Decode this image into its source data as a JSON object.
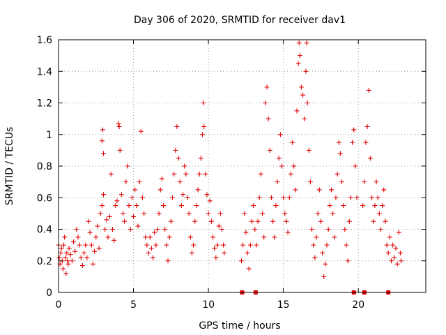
{
  "chart_data": {
    "type": "scatter",
    "title": "Day 306 of 2020, SRMTID for receiver dav1",
    "xlabel": "GPS time / hours",
    "ylabel": "SRMTID / TECUs",
    "xlim": [
      0,
      24.5
    ],
    "ylim": [
      0,
      1.6
    ],
    "xticks": [
      0,
      5,
      10,
      15,
      20
    ],
    "xtick_labels": [
      "0",
      "5",
      "10",
      "15",
      "20"
    ],
    "yticks": [
      0,
      0.2,
      0.4,
      0.6,
      0.8,
      1.0,
      1.2,
      1.4,
      1.6
    ],
    "ytick_labels": [
      "0",
      "0.2",
      "0.4",
      "0.6",
      "0.8",
      "1",
      "1.2",
      "1.4",
      "1.6"
    ],
    "grid": true,
    "marker": "plus",
    "color": "#e00000",
    "series": [
      {
        "name": "SRMTID",
        "points": [
          [
            0.0,
            0.3
          ],
          [
            0.05,
            0.22
          ],
          [
            0.1,
            0.18
          ],
          [
            0.15,
            0.25
          ],
          [
            0.2,
            0.28
          ],
          [
            0.25,
            0.2
          ],
          [
            0.3,
            0.15
          ],
          [
            0.35,
            0.3
          ],
          [
            0.4,
            0.35
          ],
          [
            0.45,
            0.22
          ],
          [
            0.5,
            0.12
          ],
          [
            0.55,
            0.25
          ],
          [
            0.6,
            0.2
          ],
          [
            0.65,
            0.18
          ],
          [
            0.7,
            0.28
          ],
          [
            0.8,
            0.24
          ],
          [
            0.9,
            0.2
          ],
          [
            1.0,
            0.32
          ],
          [
            1.1,
            0.26
          ],
          [
            1.2,
            0.4
          ],
          [
            1.3,
            0.35
          ],
          [
            1.4,
            0.3
          ],
          [
            1.5,
            0.22
          ],
          [
            1.6,
            0.17
          ],
          [
            1.7,
            0.25
          ],
          [
            1.8,
            0.3
          ],
          [
            1.9,
            0.22
          ],
          [
            2.0,
            0.45
          ],
          [
            2.1,
            0.38
          ],
          [
            2.2,
            0.3
          ],
          [
            2.3,
            0.18
          ],
          [
            2.4,
            0.26
          ],
          [
            2.5,
            0.35
          ],
          [
            2.6,
            0.42
          ],
          [
            2.7,
            0.28
          ],
          [
            2.8,
            0.5
          ],
          [
            2.9,
            0.55
          ],
          [
            3.0,
            0.62
          ],
          [
            2.9,
            0.96
          ],
          [
            2.95,
            1.03
          ],
          [
            3.0,
            0.88
          ],
          [
            3.1,
            0.4
          ],
          [
            3.2,
            0.46
          ],
          [
            3.3,
            0.35
          ],
          [
            3.4,
            0.48
          ],
          [
            3.5,
            0.75
          ],
          [
            3.6,
            0.4
          ],
          [
            3.7,
            0.33
          ],
          [
            3.8,
            0.55
          ],
          [
            3.9,
            0.58
          ],
          [
            4.0,
            1.07
          ],
          [
            4.05,
            1.05
          ],
          [
            4.1,
            0.9
          ],
          [
            4.2,
            0.62
          ],
          [
            4.3,
            0.5
          ],
          [
            4.4,
            0.45
          ],
          [
            4.5,
            0.7
          ],
          [
            4.6,
            0.8
          ],
          [
            4.7,
            0.55
          ],
          [
            4.8,
            0.4
          ],
          [
            4.9,
            0.6
          ],
          [
            5.0,
            0.48
          ],
          [
            5.1,
            0.65
          ],
          [
            5.2,
            0.55
          ],
          [
            5.3,
            0.42
          ],
          [
            5.4,
            0.7
          ],
          [
            5.5,
            1.02
          ],
          [
            5.6,
            0.6
          ],
          [
            5.7,
            0.5
          ],
          [
            5.8,
            0.35
          ],
          [
            5.9,
            0.3
          ],
          [
            6.0,
            0.25
          ],
          [
            6.1,
            0.35
          ],
          [
            6.2,
            0.28
          ],
          [
            6.3,
            0.22
          ],
          [
            6.4,
            0.38
          ],
          [
            6.5,
            0.3
          ],
          [
            6.6,
            0.4
          ],
          [
            6.7,
            0.5
          ],
          [
            6.8,
            0.65
          ],
          [
            6.9,
            0.72
          ],
          [
            7.0,
            0.55
          ],
          [
            7.1,
            0.4
          ],
          [
            7.2,
            0.3
          ],
          [
            7.3,
            0.2
          ],
          [
            7.4,
            0.35
          ],
          [
            7.5,
            0.45
          ],
          [
            7.6,
            0.6
          ],
          [
            7.7,
            0.75
          ],
          [
            7.8,
            0.9
          ],
          [
            7.9,
            1.05
          ],
          [
            8.0,
            0.85
          ],
          [
            8.1,
            0.7
          ],
          [
            8.2,
            0.55
          ],
          [
            8.3,
            0.62
          ],
          [
            8.4,
            0.8
          ],
          [
            8.5,
            0.75
          ],
          [
            8.6,
            0.6
          ],
          [
            8.7,
            0.5
          ],
          [
            8.8,
            0.35
          ],
          [
            8.9,
            0.25
          ],
          [
            9.0,
            0.3
          ],
          [
            9.1,
            0.45
          ],
          [
            9.2,
            0.55
          ],
          [
            9.3,
            0.65
          ],
          [
            9.4,
            0.75
          ],
          [
            9.5,
            0.85
          ],
          [
            9.6,
            1.0
          ],
          [
            9.65,
            1.2
          ],
          [
            9.7,
            1.05
          ],
          [
            9.8,
            0.75
          ],
          [
            9.9,
            0.62
          ],
          [
            10.0,
            0.5
          ],
          [
            10.1,
            0.58
          ],
          [
            10.2,
            0.45
          ],
          [
            10.3,
            0.35
          ],
          [
            10.4,
            0.28
          ],
          [
            10.5,
            0.22
          ],
          [
            10.6,
            0.3
          ],
          [
            10.7,
            0.42
          ],
          [
            10.8,
            0.5
          ],
          [
            10.9,
            0.4
          ],
          [
            11.0,
            0.3
          ],
          [
            11.05,
            0.25
          ],
          [
            12.2,
            0.2
          ],
          [
            12.3,
            0.3
          ],
          [
            12.4,
            0.5
          ],
          [
            12.5,
            0.38
          ],
          [
            12.6,
            0.25
          ],
          [
            12.7,
            0.15
          ],
          [
            12.8,
            0.3
          ],
          [
            12.9,
            0.45
          ],
          [
            13.0,
            0.55
          ],
          [
            13.1,
            0.4
          ],
          [
            13.2,
            0.3
          ],
          [
            13.3,
            0.45
          ],
          [
            13.4,
            0.6
          ],
          [
            13.5,
            0.75
          ],
          [
            13.6,
            0.5
          ],
          [
            13.7,
            0.35
          ],
          [
            13.8,
            1.2
          ],
          [
            13.9,
            1.3
          ],
          [
            14.0,
            1.1
          ],
          [
            14.1,
            0.9
          ],
          [
            14.2,
            0.6
          ],
          [
            14.3,
            0.45
          ],
          [
            14.4,
            0.35
          ],
          [
            14.5,
            0.55
          ],
          [
            14.6,
            0.7
          ],
          [
            14.7,
            0.85
          ],
          [
            14.8,
            1.0
          ],
          [
            14.9,
            0.8
          ],
          [
            15.0,
            0.6
          ],
          [
            15.1,
            0.5
          ],
          [
            15.2,
            0.45
          ],
          [
            15.3,
            0.38
          ],
          [
            15.4,
            0.6
          ],
          [
            15.5,
            0.75
          ],
          [
            15.6,
            0.95
          ],
          [
            15.7,
            0.8
          ],
          [
            15.8,
            0.65
          ],
          [
            15.9,
            1.15
          ],
          [
            16.0,
            1.45
          ],
          [
            16.05,
            1.58
          ],
          [
            16.1,
            1.5
          ],
          [
            16.2,
            1.3
          ],
          [
            16.3,
            1.25
          ],
          [
            16.4,
            1.1
          ],
          [
            16.5,
            1.4
          ],
          [
            16.55,
            1.58
          ],
          [
            16.6,
            1.2
          ],
          [
            16.7,
            0.9
          ],
          [
            16.8,
            0.7
          ],
          [
            16.9,
            0.4
          ],
          [
            17.0,
            0.3
          ],
          [
            17.1,
            0.22
          ],
          [
            17.2,
            0.35
          ],
          [
            17.3,
            0.5
          ],
          [
            17.4,
            0.65
          ],
          [
            17.5,
            0.45
          ],
          [
            17.6,
            0.25
          ],
          [
            17.7,
            0.1
          ],
          [
            17.8,
            0.18
          ],
          [
            17.9,
            0.3
          ],
          [
            18.0,
            0.4
          ],
          [
            18.1,
            0.55
          ],
          [
            18.2,
            0.65
          ],
          [
            18.3,
            0.5
          ],
          [
            18.4,
            0.35
          ],
          [
            18.5,
            0.6
          ],
          [
            18.6,
            0.75
          ],
          [
            18.7,
            0.95
          ],
          [
            18.8,
            0.88
          ],
          [
            18.9,
            0.7
          ],
          [
            19.0,
            0.55
          ],
          [
            19.1,
            0.4
          ],
          [
            19.2,
            0.3
          ],
          [
            19.3,
            0.2
          ],
          [
            19.4,
            0.45
          ],
          [
            19.5,
            0.6
          ],
          [
            19.6,
            0.95
          ],
          [
            19.7,
            1.03
          ],
          [
            19.8,
            0.8
          ],
          [
            19.9,
            0.6
          ],
          [
            20.3,
            0.55
          ],
          [
            20.4,
            0.7
          ],
          [
            20.5,
            0.95
          ],
          [
            20.6,
            1.05
          ],
          [
            20.7,
            1.28
          ],
          [
            20.8,
            0.85
          ],
          [
            20.9,
            0.6
          ],
          [
            21.0,
            0.45
          ],
          [
            21.1,
            0.55
          ],
          [
            21.2,
            0.7
          ],
          [
            21.3,
            0.6
          ],
          [
            21.4,
            0.5
          ],
          [
            21.5,
            0.4
          ],
          [
            21.6,
            0.55
          ],
          [
            21.7,
            0.65
          ],
          [
            21.8,
            0.45
          ],
          [
            21.9,
            0.3
          ],
          [
            22.0,
            0.25
          ],
          [
            22.1,
            0.35
          ],
          [
            22.2,
            0.2
          ],
          [
            22.3,
            0.3
          ],
          [
            22.4,
            0.22
          ],
          [
            22.5,
            0.28
          ],
          [
            22.6,
            0.18
          ],
          [
            22.7,
            0.38
          ],
          [
            22.8,
            0.25
          ],
          [
            22.85,
            0.2
          ]
        ]
      }
    ],
    "gap_markers_x": [
      12.25,
      13.15,
      19.7,
      20.4,
      22.0
    ]
  }
}
